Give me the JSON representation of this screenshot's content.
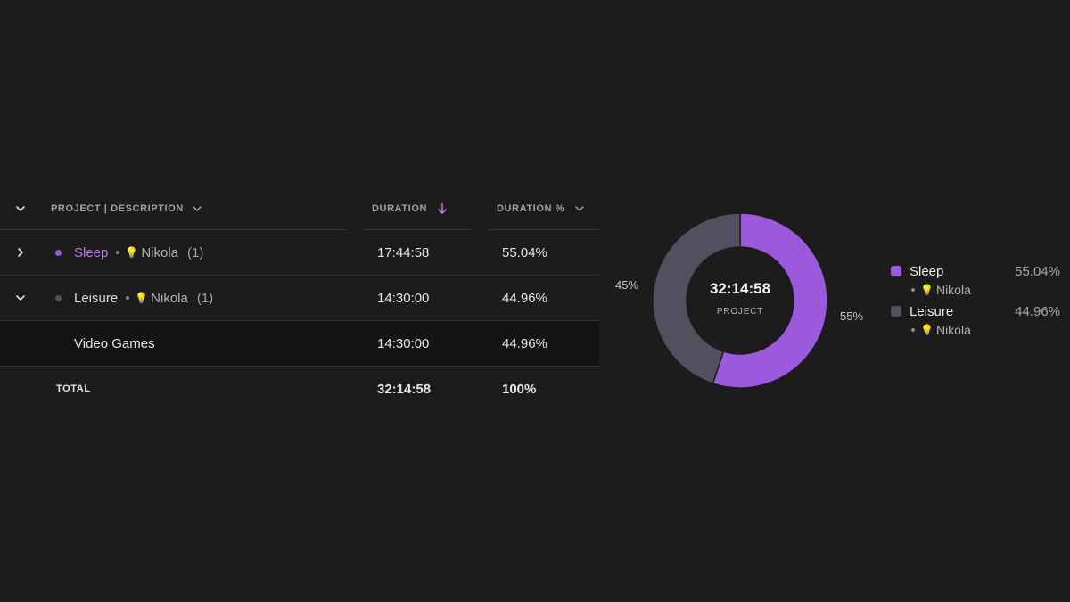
{
  "colors": {
    "sleep": "#9b59dc",
    "leisure": "#52505f",
    "accent_arrow": "#c07ad8"
  },
  "table": {
    "headers": {
      "project": "PROJECT | DESCRIPTION",
      "duration": "DURATION",
      "duration_pct": "DURATION %"
    },
    "rows": [
      {
        "project": "Sleep",
        "client": "Nikola",
        "count": "(1)",
        "duration": "17:44:58",
        "pct": "55.04%",
        "expanded": false
      },
      {
        "project": "Leisure",
        "client": "Nikola",
        "count": "(1)",
        "duration": "14:30:00",
        "pct": "44.96%",
        "expanded": true
      }
    ],
    "subrow": {
      "description": "Video Games",
      "duration": "14:30:00",
      "pct": "44.96%"
    },
    "total": {
      "label": "TOTAL",
      "duration": "32:14:58",
      "pct": "100%"
    }
  },
  "chart_data": {
    "type": "pie",
    "categories": [
      "Sleep",
      "Leisure"
    ],
    "values": [
      55.04,
      44.96
    ],
    "slice_labels": [
      "55%",
      "45%"
    ],
    "center_value": "32:14:58",
    "center_label": "PROJECT",
    "legend": [
      {
        "name": "Sleep",
        "client": "Nikola",
        "pct": "55.04%"
      },
      {
        "name": "Leisure",
        "client": "Nikola",
        "pct": "44.96%"
      }
    ],
    "legend_position": "right"
  }
}
